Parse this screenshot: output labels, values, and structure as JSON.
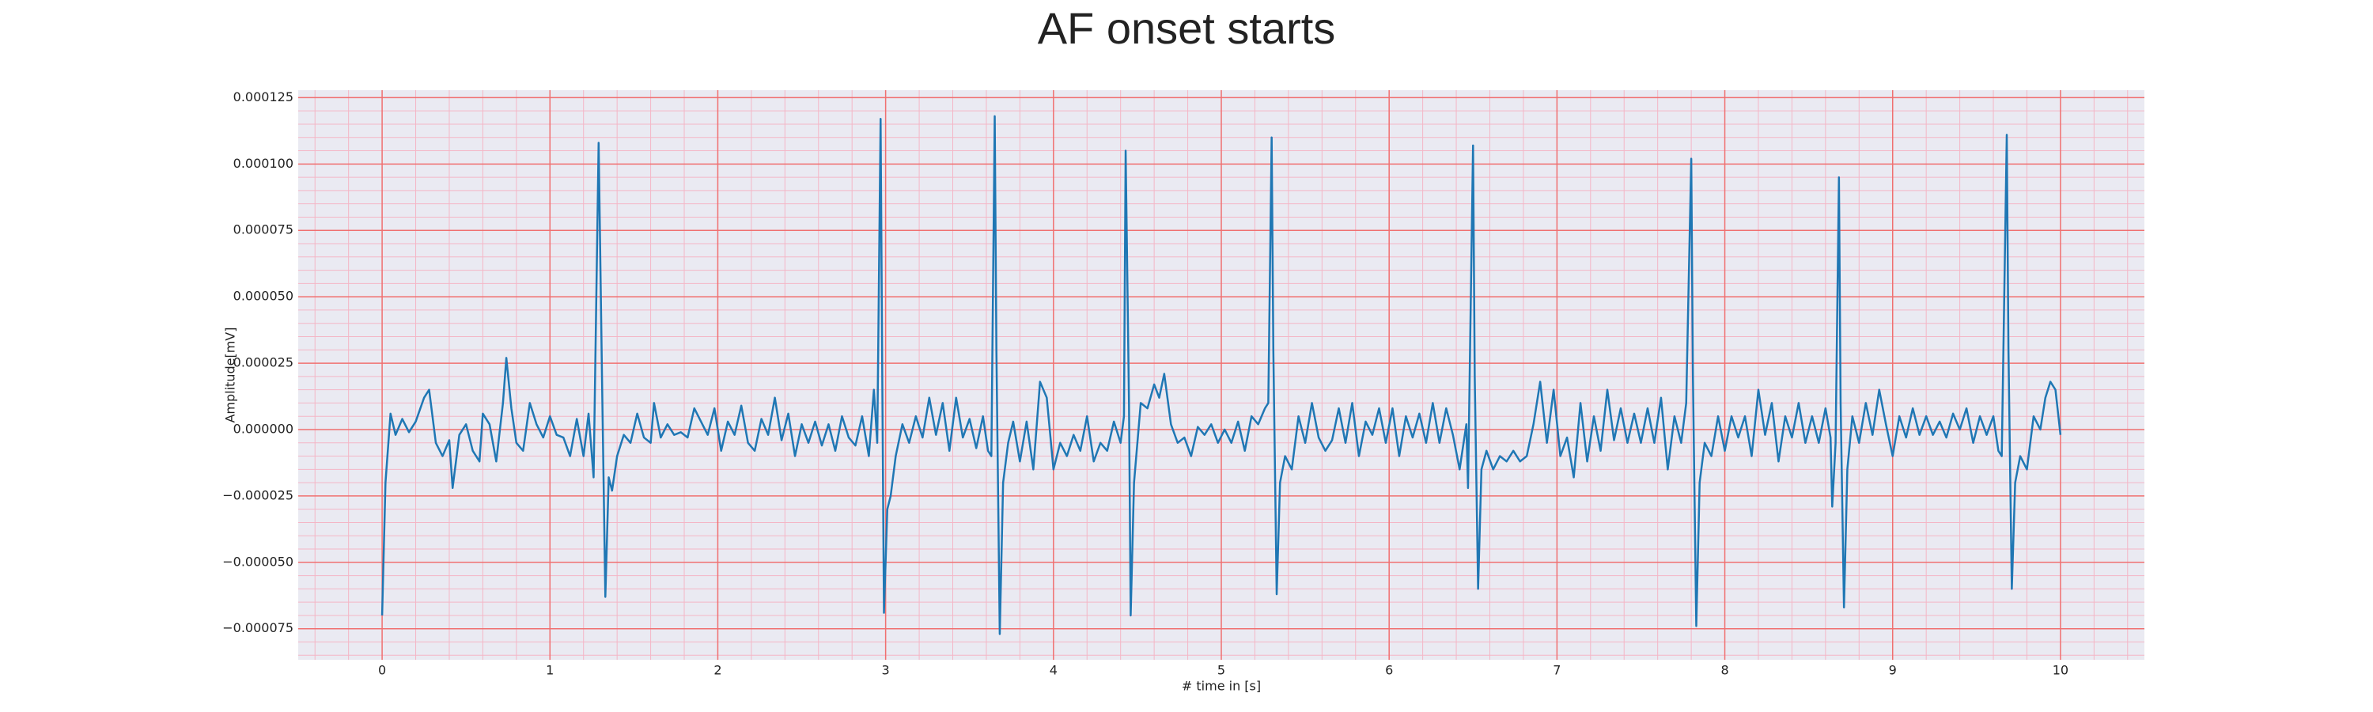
{
  "chart_data": {
    "type": "line",
    "title": "AF onset starts",
    "x_label": "# time in [s]",
    "y_label": "Amplitude[mV]",
    "color": "#1f77b4",
    "grid": true,
    "minor_grid": true,
    "xlim": [
      -0.5,
      10.5
    ],
    "ylim": [
      -8.67e-05,
      0.0001278
    ],
    "xticks": [
      0,
      1,
      2,
      3,
      4,
      5,
      6,
      7,
      8,
      9,
      10
    ],
    "yticks": [
      {
        "value": -7.5e-05,
        "label": "−0.000075"
      },
      {
        "value": -5e-05,
        "label": "−0.000050"
      },
      {
        "value": -2.5e-05,
        "label": "−0.000025"
      },
      {
        "value": 0,
        "label": "0.000000"
      },
      {
        "value": 2.5e-05,
        "label": "0.000025"
      },
      {
        "value": 5e-05,
        "label": "0.000050"
      },
      {
        "value": 7.5e-05,
        "label": "0.000075"
      },
      {
        "value": 0.0001,
        "label": "0.000100"
      },
      {
        "value": 0.000125,
        "label": "0.000125"
      }
    ],
    "x": [
      0,
      0.02,
      0.05,
      0.08,
      0.12,
      0.16,
      0.2,
      0.25,
      0.28,
      0.32,
      0.36,
      0.4,
      0.42,
      0.46,
      0.5,
      0.54,
      0.58,
      0.6,
      0.64,
      0.68,
      0.72,
      0.74,
      0.77,
      0.8,
      0.84,
      0.88,
      0.92,
      0.96,
      1.0,
      1.04,
      1.08,
      1.12,
      1.16,
      1.2,
      1.23,
      1.26,
      1.29,
      1.31,
      1.33,
      1.35,
      1.37,
      1.4,
      1.44,
      1.48,
      1.52,
      1.56,
      1.6,
      1.62,
      1.66,
      1.7,
      1.74,
      1.78,
      1.82,
      1.86,
      1.9,
      1.94,
      1.98,
      2.02,
      2.06,
      2.1,
      2.14,
      2.18,
      2.22,
      2.26,
      2.3,
      2.34,
      2.38,
      2.42,
      2.46,
      2.5,
      2.54,
      2.58,
      2.62,
      2.66,
      2.7,
      2.74,
      2.78,
      2.82,
      2.86,
      2.9,
      2.93,
      2.95,
      2.97,
      2.98,
      2.99,
      3.01,
      3.03,
      3.06,
      3.1,
      3.14,
      3.18,
      3.22,
      3.26,
      3.3,
      3.34,
      3.38,
      3.42,
      3.46,
      3.5,
      3.54,
      3.58,
      3.61,
      3.63,
      3.65,
      3.66,
      3.68,
      3.7,
      3.73,
      3.76,
      3.8,
      3.84,
      3.88,
      3.92,
      3.96,
      4.0,
      4.04,
      4.08,
      4.12,
      4.16,
      4.2,
      4.24,
      4.28,
      4.32,
      4.36,
      4.4,
      4.42,
      4.43,
      4.45,
      4.46,
      4.48,
      4.52,
      4.56,
      4.6,
      4.63,
      4.66,
      4.7,
      4.74,
      4.78,
      4.82,
      4.86,
      4.9,
      4.94,
      4.98,
      5.02,
      5.06,
      5.1,
      5.14,
      5.18,
      5.22,
      5.26,
      5.28,
      5.3,
      5.31,
      5.33,
      5.35,
      5.38,
      5.42,
      5.46,
      5.5,
      5.54,
      5.58,
      5.62,
      5.66,
      5.7,
      5.74,
      5.78,
      5.82,
      5.86,
      5.9,
      5.94,
      5.98,
      6.02,
      6.06,
      6.1,
      6.14,
      6.18,
      6.22,
      6.26,
      6.3,
      6.34,
      6.38,
      6.42,
      6.46,
      6.47,
      6.5,
      6.51,
      6.53,
      6.55,
      6.58,
      6.62,
      6.66,
      6.7,
      6.74,
      6.78,
      6.82,
      6.86,
      6.9,
      6.94,
      6.98,
      7.02,
      7.06,
      7.1,
      7.14,
      7.18,
      7.22,
      7.26,
      7.3,
      7.34,
      7.38,
      7.42,
      7.46,
      7.5,
      7.54,
      7.58,
      7.62,
      7.66,
      7.7,
      7.74,
      7.77,
      7.8,
      7.81,
      7.83,
      7.85,
      7.88,
      7.92,
      7.96,
      8.0,
      8.04,
      8.08,
      8.12,
      8.16,
      8.2,
      8.24,
      8.28,
      8.32,
      8.36,
      8.4,
      8.44,
      8.48,
      8.52,
      8.56,
      8.6,
      8.63,
      8.64,
      8.66,
      8.68,
      8.69,
      8.71,
      8.73,
      8.76,
      8.8,
      8.84,
      8.88,
      8.92,
      8.96,
      9.0,
      9.04,
      9.08,
      9.12,
      9.16,
      9.2,
      9.24,
      9.28,
      9.32,
      9.36,
      9.4,
      9.44,
      9.48,
      9.52,
      9.56,
      9.6,
      9.63,
      9.65,
      9.68,
      9.69,
      9.71,
      9.73,
      9.76,
      9.8,
      9.84,
      9.88,
      9.91,
      9.94,
      9.97,
      10.0
    ],
    "values": [
      -7e-05,
      -2e-05,
      6e-06,
      -2e-06,
      4e-06,
      -1e-06,
      3e-06,
      1.2e-05,
      1.5e-05,
      -5e-06,
      -1e-05,
      -4e-06,
      -2.2e-05,
      -2e-06,
      2e-06,
      -8e-06,
      -1.2e-05,
      6e-06,
      2e-06,
      -1.2e-05,
      1e-05,
      2.7e-05,
      8e-06,
      -5e-06,
      -8e-06,
      1e-05,
      2e-06,
      -3e-06,
      5e-06,
      -2e-06,
      -3e-06,
      -1e-05,
      4e-06,
      -1e-05,
      6e-06,
      -1.8e-05,
      0.000108,
      2e-05,
      -6.3e-05,
      -1.8e-05,
      -2.3e-05,
      -1e-05,
      -2e-06,
      -5e-06,
      6e-06,
      -3e-06,
      -5e-06,
      1e-05,
      -3e-06,
      2e-06,
      -2e-06,
      -1e-06,
      -3e-06,
      8e-06,
      3e-06,
      -2e-06,
      8e-06,
      -8e-06,
      3e-06,
      -2e-06,
      9e-06,
      -5e-06,
      -8e-06,
      4e-06,
      -2e-06,
      1.2e-05,
      -4e-06,
      6e-06,
      -1e-05,
      2e-06,
      -5e-06,
      3e-06,
      -6e-06,
      2e-06,
      -8e-06,
      5e-06,
      -3e-06,
      -6e-06,
      5e-06,
      -1e-05,
      1.5e-05,
      -5e-06,
      0.000117,
      2e-05,
      -6.9e-05,
      -3e-05,
      -2.5e-05,
      -1e-05,
      2e-06,
      -5e-06,
      5e-06,
      -3e-06,
      1.2e-05,
      -2e-06,
      1e-05,
      -8e-06,
      1.2e-05,
      -3e-06,
      4e-06,
      -7e-06,
      5e-06,
      -8e-06,
      -1e-05,
      0.000118,
      3e-05,
      -7.7e-05,
      -2e-05,
      -5e-06,
      3e-06,
      -1.2e-05,
      3e-06,
      -1.5e-05,
      1.8e-05,
      1.2e-05,
      -1.5e-05,
      -5e-06,
      -1e-05,
      -2e-06,
      -8e-06,
      5e-06,
      -1.2e-05,
      -5e-06,
      -8e-06,
      3e-06,
      -5e-06,
      5e-06,
      0.000105,
      1e-05,
      -7e-05,
      -2e-05,
      1e-05,
      8e-06,
      1.7e-05,
      1.2e-05,
      2.1e-05,
      2e-06,
      -5e-06,
      -3e-06,
      -1e-05,
      1e-06,
      -2e-06,
      2e-06,
      -5e-06,
      0,
      -5e-06,
      3e-06,
      -8e-06,
      5e-06,
      2e-06,
      8e-06,
      1e-05,
      0.00011,
      3e-05,
      -6.2e-05,
      -2e-05,
      -1e-05,
      -1.5e-05,
      5e-06,
      -5e-06,
      1e-05,
      -3e-06,
      -8e-06,
      -4e-06,
      8e-06,
      -5e-06,
      1e-05,
      -1e-05,
      3e-06,
      -2e-06,
      8e-06,
      -5e-06,
      8e-06,
      -1e-05,
      5e-06,
      -3e-06,
      6e-06,
      -5e-06,
      1e-05,
      -5e-06,
      8e-06,
      -2e-06,
      -1.5e-05,
      2e-06,
      -2.2e-05,
      0.000107,
      2e-05,
      -6e-05,
      -1.5e-05,
      -8e-06,
      -1.5e-05,
      -1e-05,
      -1.2e-05,
      -8e-06,
      -1.2e-05,
      -1e-05,
      2e-06,
      1.8e-05,
      -5e-06,
      1.5e-05,
      -1e-05,
      -3e-06,
      -1.8e-05,
      1e-05,
      -1.2e-05,
      5e-06,
      -8e-06,
      1.5e-05,
      -4e-06,
      8e-06,
      -5e-06,
      6e-06,
      -5e-06,
      8e-06,
      -5e-06,
      1.2e-05,
      -1.5e-05,
      5e-06,
      -5e-06,
      1e-05,
      0.000102,
      2e-05,
      -7.4e-05,
      -2e-05,
      -5e-06,
      -1e-05,
      5e-06,
      -8e-06,
      5e-06,
      -3e-06,
      5e-06,
      -1e-05,
      1.5e-05,
      -2e-06,
      1e-05,
      -1.2e-05,
      5e-06,
      -3e-06,
      1e-05,
      -5e-06,
      5e-06,
      -5e-06,
      8e-06,
      -3e-06,
      -2.9e-05,
      -5e-06,
      9.5e-05,
      1e-05,
      -6.7e-05,
      -1.5e-05,
      5e-06,
      -5e-06,
      1e-05,
      -2e-06,
      1.5e-05,
      2e-06,
      -1e-05,
      5e-06,
      -3e-06,
      8e-06,
      -2e-06,
      5e-06,
      -2e-06,
      3e-06,
      -3e-06,
      6e-06,
      0,
      8e-06,
      -5e-06,
      5e-06,
      -2e-06,
      5e-06,
      -8e-06,
      -1e-05,
      0.000111,
      3e-05,
      -6e-05,
      -2e-05,
      -1e-05,
      -1.5e-05,
      5e-06,
      0,
      1.2e-05,
      1.8e-05,
      1.5e-05,
      -2e-06
    ]
  }
}
